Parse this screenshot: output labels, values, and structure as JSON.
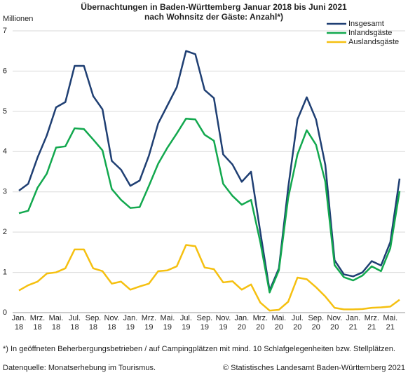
{
  "chart_data": {
    "type": "line",
    "title": [
      "Übernachtungen in Baden-Württemberg Januar 2018 bis Juni 2021",
      "nach Wohnsitz der Gäste: Anzahl*)"
    ],
    "y_label": "Millionen",
    "categories": [
      "Jan.\n18",
      null,
      "Mrz.\n18",
      null,
      "Mai.\n18",
      null,
      "Jul.\n18",
      null,
      "Sep.\n18",
      null,
      "Nov.\n18",
      null,
      "Jan.\n19",
      null,
      "Mrz.\n19",
      null,
      "Mai.\n19",
      null,
      "Jul.\n19",
      null,
      "Sep.\n19",
      null,
      "Nov.\n19",
      null,
      "Jan.\n20",
      null,
      "Mrz.\n20",
      null,
      "Mai.\n20",
      null,
      "Jul.\n20",
      null,
      "Sep.\n20",
      null,
      "Nov.\n20",
      null,
      "Jan.\n21",
      null,
      "Mrz.\n21",
      null,
      "Mai.\n21",
      null
    ],
    "series": [
      {
        "name": "Insgesamt",
        "color": "#1f3f73",
        "values": [
          3.03,
          3.2,
          3.85,
          4.4,
          5.1,
          5.23,
          6.13,
          6.13,
          5.38,
          5.05,
          3.77,
          3.55,
          3.15,
          3.28,
          3.9,
          4.7,
          5.15,
          5.6,
          6.5,
          6.42,
          5.53,
          5.33,
          3.93,
          3.68,
          3.25,
          3.5,
          2.0,
          0.55,
          1.1,
          3.1,
          4.8,
          5.35,
          4.8,
          3.67,
          1.3,
          0.95,
          0.9,
          1.0,
          1.28,
          1.17,
          1.75,
          3.33
        ]
      },
      {
        "name": "Inlandsgäste",
        "color": "#12a84e",
        "values": [
          2.47,
          2.53,
          3.1,
          3.45,
          4.1,
          4.13,
          4.58,
          4.56,
          4.3,
          4.03,
          3.07,
          2.8,
          2.6,
          2.62,
          3.15,
          3.7,
          4.1,
          4.45,
          4.82,
          4.8,
          4.42,
          4.27,
          3.2,
          2.9,
          2.68,
          2.8,
          1.75,
          0.5,
          1.05,
          2.85,
          3.93,
          4.53,
          4.17,
          3.25,
          1.18,
          0.88,
          0.8,
          0.92,
          1.15,
          1.03,
          1.6,
          3.02
        ]
      },
      {
        "name": "Auslandsgäste",
        "color": "#f5c010",
        "values": [
          0.55,
          0.68,
          0.77,
          0.97,
          1.0,
          1.1,
          1.57,
          1.57,
          1.1,
          1.03,
          0.72,
          0.77,
          0.57,
          0.65,
          0.72,
          1.03,
          1.05,
          1.15,
          1.68,
          1.65,
          1.12,
          1.08,
          0.75,
          0.78,
          0.57,
          0.7,
          0.25,
          0.05,
          0.07,
          0.27,
          0.87,
          0.83,
          0.63,
          0.4,
          0.12,
          0.08,
          0.08,
          0.09,
          0.12,
          0.13,
          0.15,
          0.32
        ]
      }
    ],
    "ylim": [
      0,
      7
    ],
    "yticks": [
      0,
      1,
      2,
      3,
      4,
      5,
      6,
      7
    ],
    "grid": true,
    "legend": "top-right",
    "footnote": "*) In geöffneten Beherbergungsbetrieben / auf Campingplätzen mit mind. 10 Schlafgelegenheiten bzw. Stellplätzen.",
    "source": "Datenquelle: Monatserhebung im Tourismus.",
    "copyright": "© Statistisches Landesamt Baden-Württemberg 2021"
  }
}
